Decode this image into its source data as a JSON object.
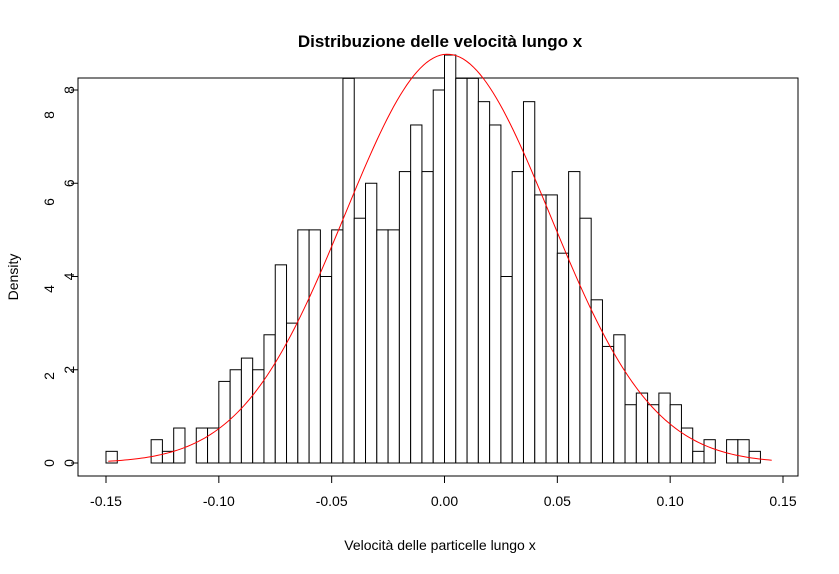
{
  "chart_data": {
    "type": "bar",
    "title": "Distribuzione delle velocità lungo x",
    "xlabel": "Velocità delle particelle lungo x",
    "ylabel": "Density",
    "xlim": [
      -0.15,
      0.15
    ],
    "ylim": [
      0,
      8
    ],
    "x_ticks": [
      -0.15,
      -0.1,
      -0.05,
      0.0,
      0.05,
      0.1,
      0.15
    ],
    "x_tick_labels": [
      "-0.15",
      "-0.10",
      "-0.05",
      "0.00",
      "0.05",
      "0.10",
      "0.15"
    ],
    "y_ticks": [
      0,
      2,
      4,
      6,
      8
    ],
    "y_tick_labels_a": [
      "0",
      "2",
      "4",
      "6",
      "8"
    ],
    "y_tick_labels_b": [
      "0",
      "2",
      "4",
      "6",
      "8"
    ],
    "bin_width": 0.005,
    "bin_start": -0.15,
    "values": [
      0.25,
      0,
      0,
      0,
      0.5,
      0.25,
      0.75,
      0,
      0.75,
      0.75,
      1.75,
      2.0,
      2.25,
      2.0,
      2.75,
      4.25,
      3.0,
      5.0,
      5.0,
      4.0,
      5.0,
      8.25,
      5.25,
      6.0,
      5.0,
      5.0,
      6.25,
      7.25,
      6.25,
      8.0,
      8.75,
      8.25,
      8.25,
      7.75,
      7.25,
      4.0,
      6.25,
      7.75,
      5.75,
      5.75,
      4.5,
      6.25,
      5.25,
      3.5,
      2.5,
      2.75,
      1.25,
      1.5,
      1.25,
      1.5,
      1.25,
      0.75,
      0.25,
      0.5,
      0,
      0.5,
      0.5,
      0.25
    ],
    "density_curve": {
      "name": "",
      "color": "#ff0000",
      "mean": 0.0013,
      "sd": 0.0455,
      "x_range": [
        -0.149,
        0.145
      ]
    },
    "bar_fill": "#ffffff",
    "bar_stroke": "#000000",
    "grid": false,
    "legend": "none"
  }
}
